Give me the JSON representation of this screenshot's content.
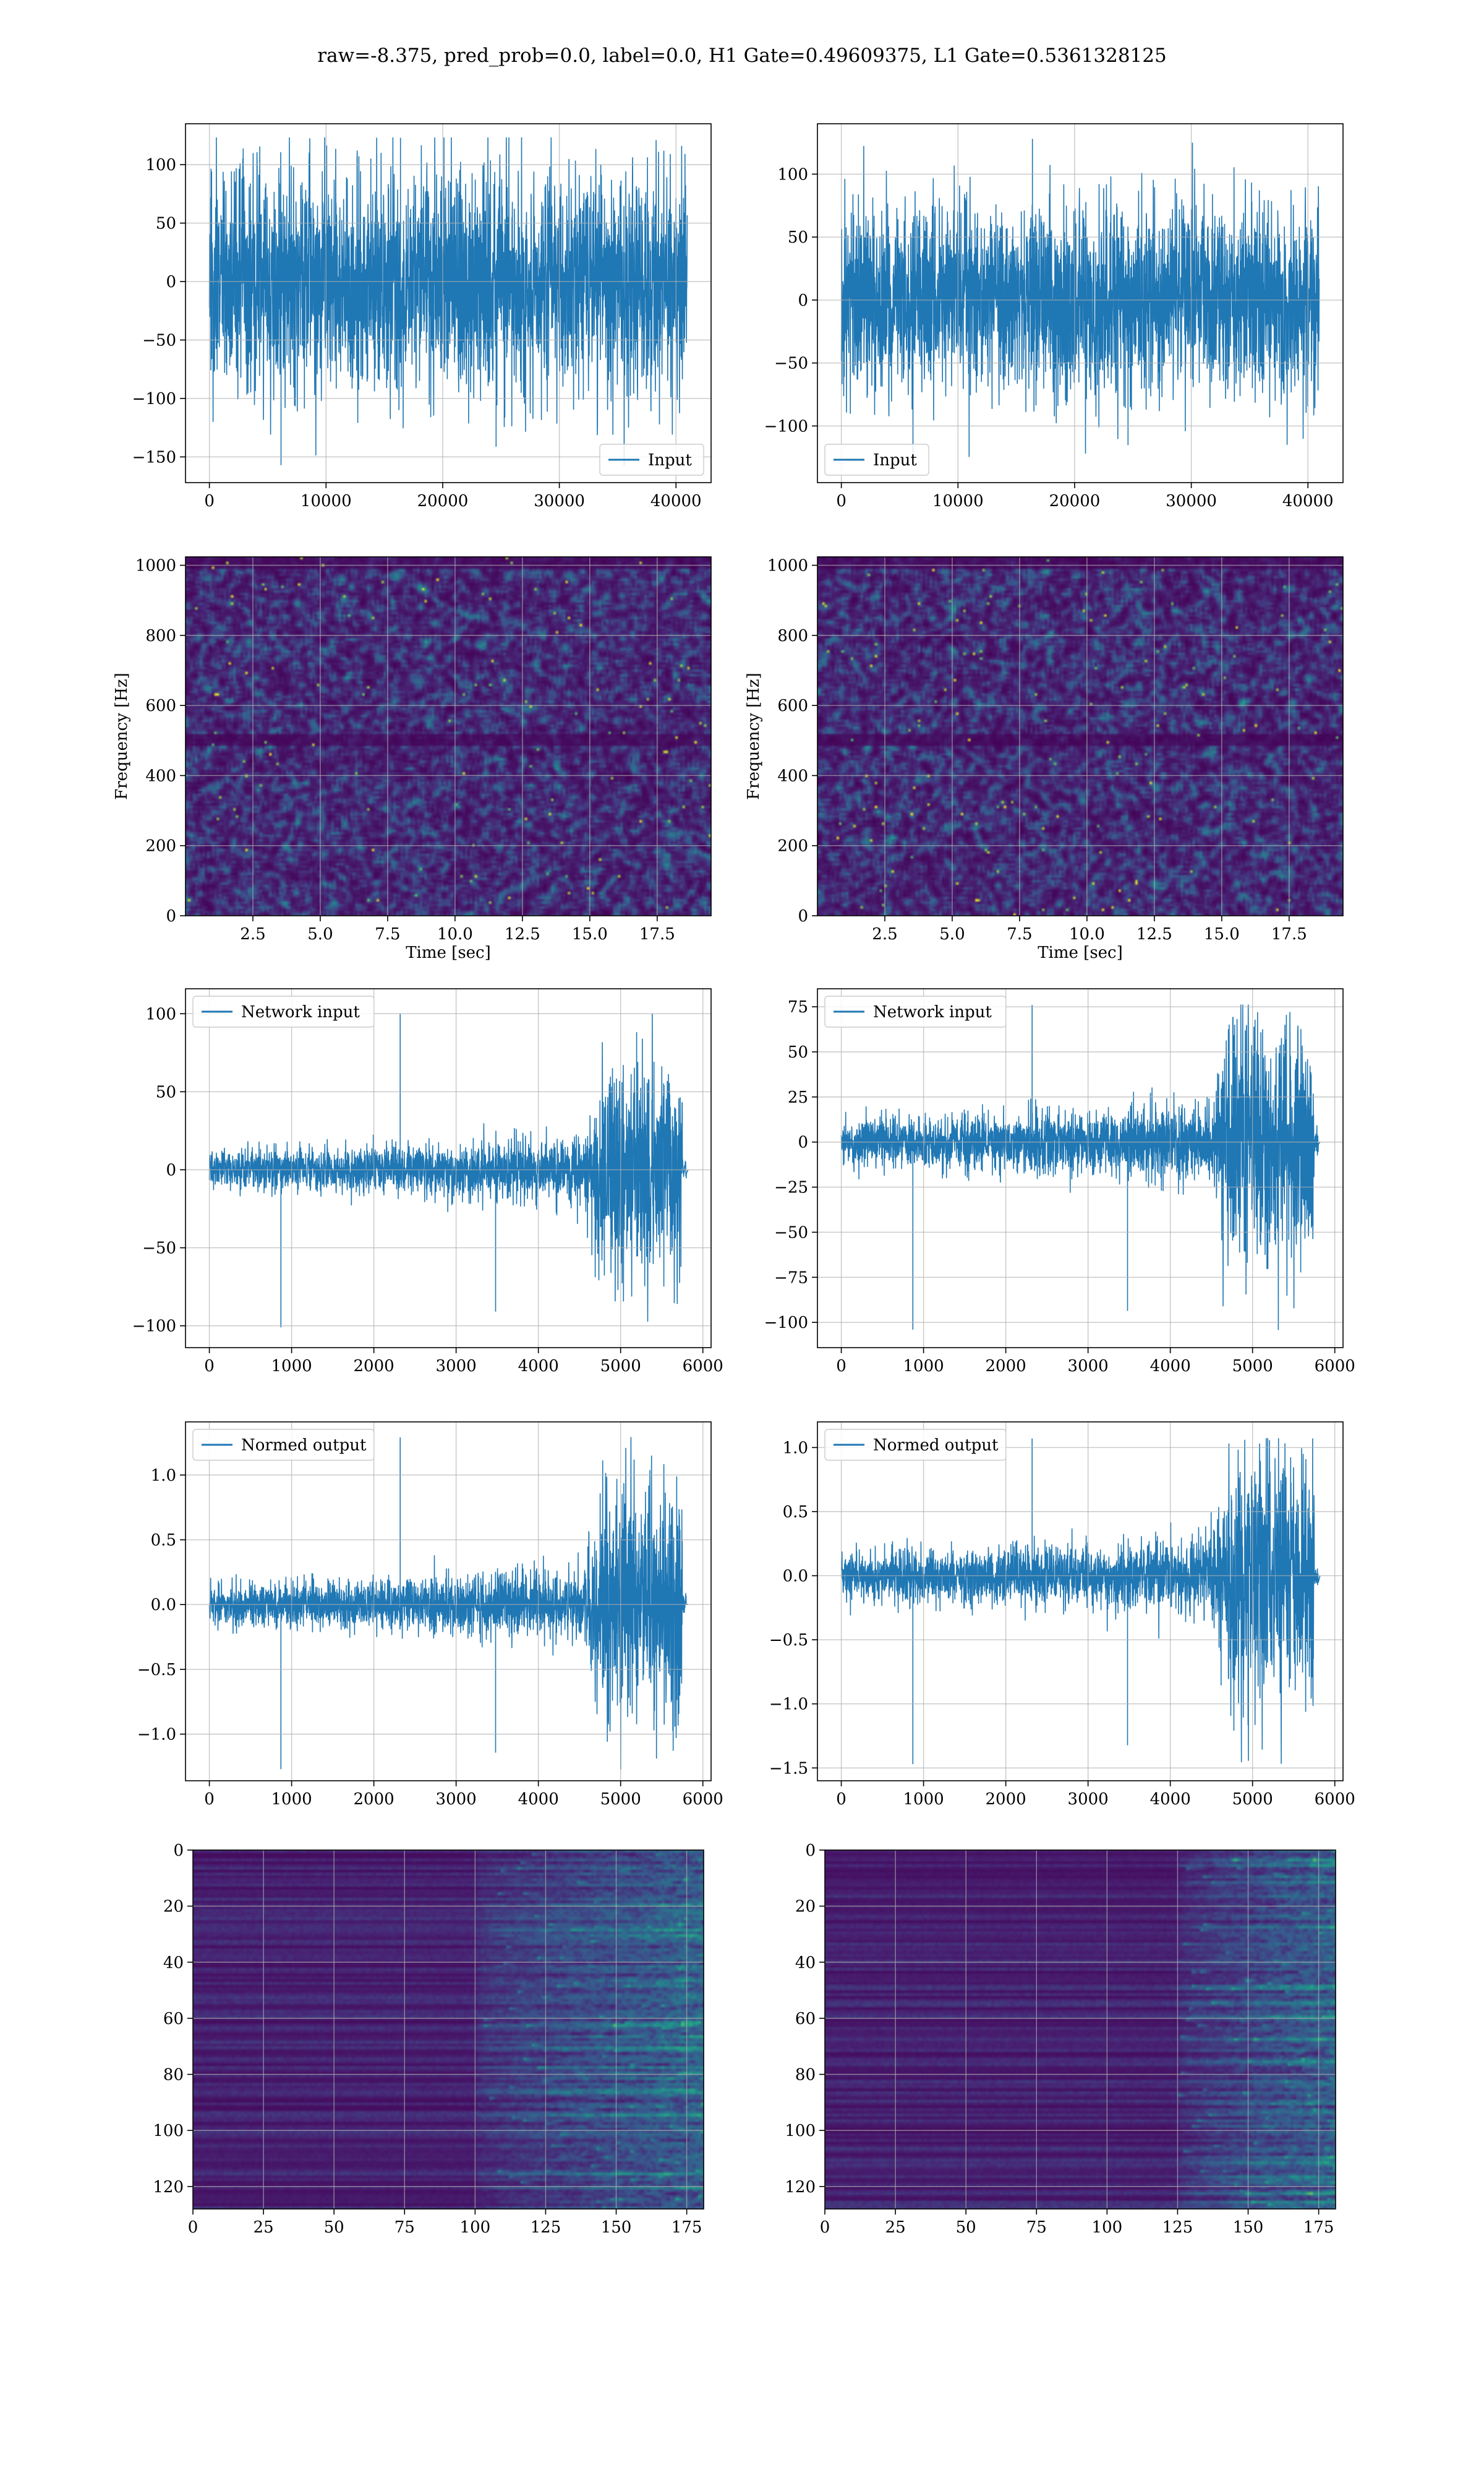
{
  "figure": {
    "suptitle": "raw=-8.375, pred_prob=0.0, label=0.0, H1 Gate=0.49609375, L1 Gate=0.5361328125",
    "line_color": "#1f77b4",
    "grid_color": "#b0b0b0",
    "colormap": "viridis"
  },
  "chart_data": [
    {
      "id": "h1-input",
      "type": "line",
      "row": 0,
      "col": 0,
      "series": [
        {
          "name": "Input",
          "n_points": 40960,
          "amp_min": -157,
          "amp_max": 123,
          "envelope": "stationary"
        }
      ],
      "legend_loc": "lower-right",
      "xlim": [
        -2048,
        43008
      ],
      "ylim": [
        -172,
        135
      ],
      "xticks": [
        0,
        10000,
        20000,
        30000,
        40000
      ],
      "xticklabels": [
        "0",
        "10000",
        "20000",
        "30000",
        "40000"
      ],
      "yticks": [
        -150,
        -100,
        -50,
        0,
        50,
        100
      ],
      "yticklabels": [
        "−150",
        "−100",
        "−50",
        "0",
        "50",
        "100"
      ],
      "xlabel": "",
      "ylabel": "",
      "grid": true
    },
    {
      "id": "l1-input",
      "type": "line",
      "row": 0,
      "col": 1,
      "series": [
        {
          "name": "Input",
          "n_points": 40960,
          "amp_min": -128,
          "amp_max": 128,
          "envelope": "stationary"
        }
      ],
      "legend_loc": "lower-left",
      "xlim": [
        -2048,
        43008
      ],
      "ylim": [
        -145,
        140
      ],
      "xticks": [
        0,
        10000,
        20000,
        30000,
        40000
      ],
      "xticklabels": [
        "0",
        "10000",
        "20000",
        "30000",
        "40000"
      ],
      "yticks": [
        -100,
        -50,
        0,
        50,
        100
      ],
      "yticklabels": [
        "−100",
        "−50",
        "0",
        "50",
        "100"
      ],
      "xlabel": "",
      "ylabel": "",
      "grid": true
    },
    {
      "id": "h1-spectrogram",
      "type": "heatmap",
      "row": 1,
      "col": 0,
      "xlim": [
        0,
        19.5
      ],
      "ylim": [
        0,
        1024
      ],
      "xticks": [
        2.5,
        5.0,
        7.5,
        10.0,
        12.5,
        15.0,
        17.5
      ],
      "xticklabels": [
        "2.5",
        "5.0",
        "7.5",
        "10.0",
        "12.5",
        "15.0",
        "17.5"
      ],
      "yticks": [
        0,
        200,
        400,
        600,
        800,
        1000
      ],
      "yticklabels": [
        "0",
        "200",
        "400",
        "600",
        "800",
        "1000"
      ],
      "xlabel": "Time [sec]",
      "ylabel": "Frequency [Hz]",
      "dark_bands_hz": [
        500,
        1010
      ],
      "grid": true
    },
    {
      "id": "l1-spectrogram",
      "type": "heatmap",
      "row": 1,
      "col": 1,
      "xlim": [
        0,
        19.5
      ],
      "ylim": [
        0,
        1024
      ],
      "xticks": [
        2.5,
        5.0,
        7.5,
        10.0,
        12.5,
        15.0,
        17.5
      ],
      "xticklabels": [
        "2.5",
        "5.0",
        "7.5",
        "10.0",
        "12.5",
        "15.0",
        "17.5"
      ],
      "yticks": [
        0,
        200,
        400,
        600,
        800,
        1000
      ],
      "yticklabels": [
        "0",
        "200",
        "400",
        "600",
        "800",
        "1000"
      ],
      "xlabel": "Time [sec]",
      "ylabel": "Frequency [Hz]",
      "dark_bands_hz": [
        500,
        1010
      ],
      "grid": true
    },
    {
      "id": "h1-network-input",
      "type": "line",
      "row": 2,
      "col": 0,
      "series": [
        {
          "name": "Network input",
          "n_points": 5800,
          "amp_min": -101,
          "amp_max": 100,
          "envelope": "chirp",
          "burst_start": 4550,
          "end": 5750,
          "tail_end": 5820
        }
      ],
      "legend_loc": "upper-left",
      "xlim": [
        -290,
        6100
      ],
      "ylim": [
        -114,
        116
      ],
      "xticks": [
        0,
        1000,
        2000,
        3000,
        4000,
        5000,
        6000
      ],
      "xticklabels": [
        "0",
        "1000",
        "2000",
        "3000",
        "4000",
        "5000",
        "6000"
      ],
      "yticks": [
        -100,
        -50,
        0,
        50,
        100
      ],
      "yticklabels": [
        "−100",
        "−50",
        "0",
        "50",
        "100"
      ],
      "xlabel": "",
      "ylabel": "",
      "grid": true
    },
    {
      "id": "l1-network-input",
      "type": "line",
      "row": 2,
      "col": 1,
      "series": [
        {
          "name": "Network input",
          "n_points": 5800,
          "amp_min": -104,
          "amp_max": 76,
          "envelope": "chirp",
          "burst_start": 4500,
          "end": 5750,
          "tail_end": 5820
        }
      ],
      "legend_loc": "upper-left",
      "xlim": [
        -290,
        6100
      ],
      "ylim": [
        -114,
        85
      ],
      "xticks": [
        0,
        1000,
        2000,
        3000,
        4000,
        5000,
        6000
      ],
      "xticklabels": [
        "0",
        "1000",
        "2000",
        "3000",
        "4000",
        "5000",
        "6000"
      ],
      "yticks": [
        -100,
        -75,
        -50,
        -25,
        0,
        25,
        50,
        75
      ],
      "yticklabels": [
        "−100",
        "−75",
        "−50",
        "−25",
        "0",
        "25",
        "50",
        "75"
      ],
      "xlabel": "",
      "ylabel": "",
      "grid": true
    },
    {
      "id": "h1-normed-output",
      "type": "line",
      "row": 3,
      "col": 0,
      "series": [
        {
          "name": "Normed output",
          "n_points": 5800,
          "amp_min": -1.27,
          "amp_max": 1.29,
          "envelope": "chirp",
          "burst_start": 4550,
          "end": 5750,
          "tail_end": 5820
        }
      ],
      "legend_loc": "upper-left",
      "xlim": [
        -290,
        6100
      ],
      "ylim": [
        -1.36,
        1.41
      ],
      "xticks": [
        0,
        1000,
        2000,
        3000,
        4000,
        5000,
        6000
      ],
      "xticklabels": [
        "0",
        "1000",
        "2000",
        "3000",
        "4000",
        "5000",
        "6000"
      ],
      "yticks": [
        -1.0,
        -0.5,
        0.0,
        0.5,
        1.0
      ],
      "yticklabels": [
        "−1.0",
        "−0.5",
        "0.0",
        "0.5",
        "1.0"
      ],
      "xlabel": "",
      "ylabel": "",
      "grid": true
    },
    {
      "id": "l1-normed-output",
      "type": "line",
      "row": 3,
      "col": 1,
      "series": [
        {
          "name": "Normed output",
          "n_points": 5800,
          "amp_min": -1.47,
          "amp_max": 1.07,
          "envelope": "chirp",
          "burst_start": 4500,
          "end": 5750,
          "tail_end": 5820
        }
      ],
      "legend_loc": "upper-left",
      "xlim": [
        -290,
        6100
      ],
      "ylim": [
        -1.6,
        1.2
      ],
      "xticks": [
        0,
        1000,
        2000,
        3000,
        4000,
        5000,
        6000
      ],
      "xticklabels": [
        "0",
        "1000",
        "2000",
        "3000",
        "4000",
        "5000",
        "6000"
      ],
      "yticks": [
        -1.5,
        -1.0,
        -0.5,
        0.0,
        0.5,
        1.0
      ],
      "yticklabels": [
        "−1.5",
        "−1.0",
        "−0.5",
        "0.0",
        "0.5",
        "1.0"
      ],
      "xlabel": "",
      "ylabel": "",
      "grid": true
    },
    {
      "id": "h1-feature-map",
      "type": "heatmap",
      "row": 4,
      "col": 0,
      "xlim": [
        0,
        181
      ],
      "ylim": [
        128,
        0
      ],
      "xticks": [
        0,
        25,
        50,
        75,
        100,
        125,
        150,
        175
      ],
      "xticklabels": [
        "0",
        "25",
        "50",
        "75",
        "100",
        "125",
        "150",
        "175"
      ],
      "yticks": [
        0,
        20,
        40,
        60,
        80,
        100,
        120
      ],
      "yticklabels": [
        "0",
        "20",
        "40",
        "60",
        "80",
        "100",
        "120"
      ],
      "activity_start": 100,
      "xlabel": "",
      "ylabel": "",
      "grid": true
    },
    {
      "id": "l1-feature-map",
      "type": "heatmap",
      "row": 4,
      "col": 1,
      "xlim": [
        0,
        181
      ],
      "ylim": [
        128,
        0
      ],
      "xticks": [
        0,
        25,
        50,
        75,
        100,
        125,
        150,
        175
      ],
      "xticklabels": [
        "0",
        "25",
        "50",
        "75",
        "100",
        "125",
        "150",
        "175"
      ],
      "yticks": [
        0,
        20,
        40,
        60,
        80,
        100,
        120
      ],
      "yticklabels": [
        "0",
        "20",
        "40",
        "60",
        "80",
        "100",
        "120"
      ],
      "activity_start": 125,
      "xlabel": "",
      "ylabel": "",
      "grid": true
    }
  ]
}
